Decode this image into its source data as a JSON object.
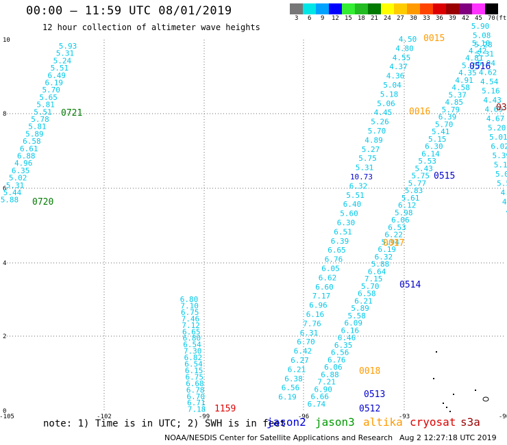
{
  "header": {
    "title": "00:00 — 11:59 UTC 08/01/2019",
    "subtitle": "12 hour collection of altimeter wave heights"
  },
  "legend": {
    "unit": "(ft)",
    "swatches": [
      {
        "label": "3",
        "color": "#777777"
      },
      {
        "label": "6",
        "color": "#00e5e5"
      },
      {
        "label": "9",
        "color": "#00a2ff"
      },
      {
        "label": "12",
        "color": "#0000ff"
      },
      {
        "label": "15",
        "color": "#33ee33"
      },
      {
        "label": "18",
        "color": "#22bb22"
      },
      {
        "label": "21",
        "color": "#007a00"
      },
      {
        "label": "24",
        "color": "#ffff00"
      },
      {
        "label": "27",
        "color": "#ffcc00"
      },
      {
        "label": "30",
        "color": "#ff9a00"
      },
      {
        "label": "33",
        "color": "#ff4400"
      },
      {
        "label": "36",
        "color": "#dd0000"
      },
      {
        "label": "39",
        "color": "#990000"
      },
      {
        "label": "42",
        "color": "#800080"
      },
      {
        "label": "45",
        "color": "#ff33ff"
      },
      {
        "label": "70",
        "color": "#000000"
      }
    ]
  },
  "axes": {
    "x_ticks": [
      "-105",
      "-102",
      "-99",
      "-96",
      "-93",
      "-90"
    ],
    "y_ticks": [
      "10",
      "8",
      "6",
      "4",
      "2",
      "0"
    ]
  },
  "tracks": [
    {
      "time": "0721",
      "time_color": "#007a00"
    },
    {
      "time": "0720",
      "time_color": "#007a00"
    },
    {
      "time": "1159",
      "time_color": "#dd0000"
    },
    {
      "time": "0015",
      "time_color": "#ff9a00"
    },
    {
      "time": "0016",
      "time_color": "#ff9a00"
    },
    {
      "time": "0516",
      "time_color": "#0000cc"
    },
    {
      "time": "0515",
      "time_color": "#0000cc"
    },
    {
      "time": "0514",
      "time_color": "#0000cc"
    },
    {
      "time": "0017",
      "time_color": "#ff9a00"
    },
    {
      "time": "0018",
      "time_color": "#ff9a00"
    },
    {
      "time": "0513",
      "time_color": "#0000cc"
    },
    {
      "time": "0512",
      "time_color": "#0000cc"
    },
    {
      "time": "03",
      "time_color": "#990000"
    }
  ],
  "value_colors": {
    "normal": "#00c8e8",
    "high": "#0000cc"
  },
  "columns": [
    {
      "top": [
        "5.93",
        "5.31",
        "5.24",
        "5.51",
        "6.49",
        "6.19",
        "5.70",
        "5.65",
        "5.81",
        "5.51",
        "5.78",
        "5.81",
        "5.89",
        "6.58",
        "6.61",
        "6.88",
        "4.96",
        "6.35",
        "5.02",
        "5.31",
        "5.44",
        "5.88"
      ]
    },
    {
      "top": [
        "6.80",
        "7.10",
        "6.75",
        "7.46",
        "7.12",
        "6.65",
        "6.80",
        "6.54",
        "7.30",
        "6.82",
        "6.54",
        "6.15",
        "6.75",
        "6.68",
        "6.78",
        "6.70",
        "6.71",
        "7.18"
      ]
    },
    {
      "top": [
        "4.50",
        "4.80",
        "4.55",
        "4.37",
        "4.36",
        "5.04",
        "5.18",
        "5.06",
        "4.45",
        "5.26",
        "5.70",
        "4.89",
        "5.27",
        "5.75",
        "5.31",
        "10.73",
        "6.32",
        "5.51",
        "6.40",
        "5.60",
        "6.30",
        "6.51",
        "6.39",
        "6.65",
        "6.76",
        "6.05",
        "6.62",
        "6.60",
        "7.17",
        "6.96",
        "6.16",
        "7.76",
        "6.31",
        "6.70",
        "6.42",
        "6.27",
        "6.21",
        "6.38",
        "6.56",
        "6.19"
      ]
    },
    {
      "top": [
        "5.10",
        "4.42",
        "4.81",
        "5.73",
        "4.35",
        "4.91",
        "4.58",
        "5.37",
        "4.85",
        "5.79",
        "6.39",
        "5.70",
        "5.41",
        "5.15",
        "6.30",
        "6.14",
        "5.53",
        "5.43",
        "5.75",
        "5.77",
        "5.83",
        "5.61",
        "6.12",
        "5.98",
        "6.06",
        "6.53",
        "6.22",
        "5.94",
        "6.19",
        "6.32",
        "5.88",
        "6.64",
        "7.15",
        "5.70",
        "6.58",
        "6.21",
        "5.89",
        "5.58",
        "6.09",
        "6.16",
        "6.46",
        "6.35",
        "6.56",
        "6.76",
        "6.06",
        "6.88",
        "7.21",
        "6.90",
        "6.66",
        "6.74"
      ]
    },
    {
      "top": [
        "5.90",
        "5.08",
        "5.28",
        "5.31",
        "5.94",
        "4.62",
        "4.54",
        "5.16",
        "4.43",
        "4.69",
        "4.67",
        "5.20",
        "5.01",
        "6.02",
        "5.39",
        "5.17",
        "5.02",
        "5.52",
        "4.9",
        "4.8",
        "4.",
        "4."
      ]
    }
  ],
  "note": {
    "text": "note: 1) Time is in UTC; 2) SWH is in feet"
  },
  "missions": [
    {
      "name": "jason2",
      "color": "#0000dd"
    },
    {
      "name": "jason3",
      "color": "#009900"
    },
    {
      "name": "altika",
      "color": "#ff9a00"
    },
    {
      "name": "cryosat",
      "color": "#dd0000"
    },
    {
      "name": "s3a",
      "color": "#990000"
    }
  ],
  "credit": "NOAA/NESDIS Center for Satellite Applications and Research",
  "timestamp": "Aug  2 12:27:18 UTC 2019"
}
